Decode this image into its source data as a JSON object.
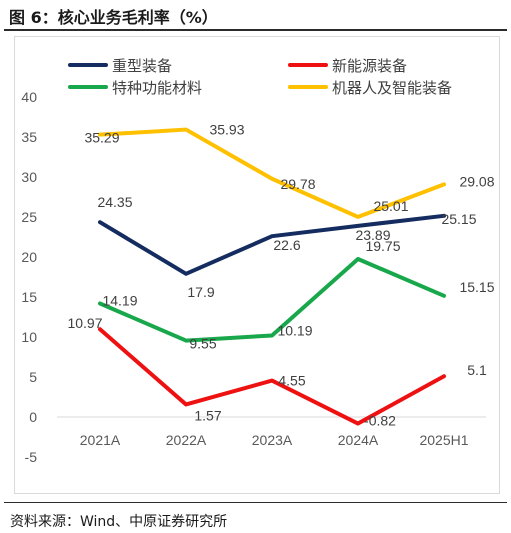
{
  "figure": {
    "title": "图 6：核心业务毛利率（%）",
    "source": "资料来源：Wind、中原证券研究所"
  },
  "chart_data": {
    "type": "line",
    "categories": [
      "2021A",
      "2022A",
      "2023A",
      "2024A",
      "2025H1"
    ],
    "ylim": [
      -5,
      40
    ],
    "yticks": [
      -5,
      0,
      5,
      10,
      15,
      20,
      25,
      30,
      35,
      40
    ],
    "grid": false,
    "legend_position": "top",
    "series": [
      {
        "name": "重型装备",
        "color": "#142c5f",
        "values": [
          24.35,
          17.9,
          22.6,
          23.89,
          25.15
        ],
        "labels": [
          "24.35",
          "17.9",
          "22.6",
          "23.89",
          "25.15"
        ]
      },
      {
        "name": "新能源装备",
        "color": "#ee1111",
        "values": [
          10.97,
          1.57,
          4.55,
          -0.82,
          5.1
        ],
        "labels": [
          "10.97",
          "1.57",
          "4.55",
          "-0.82",
          "5.1"
        ]
      },
      {
        "name": "特种功能材料",
        "color": "#18a84b",
        "values": [
          14.19,
          9.55,
          10.19,
          19.75,
          15.15
        ],
        "labels": [
          "14.19",
          "9.55",
          "10.19",
          "19.75",
          "15.15"
        ]
      },
      {
        "name": "机器人及智能装备",
        "color": "#ffc000",
        "values": [
          35.29,
          35.93,
          29.78,
          25.01,
          29.08
        ],
        "labels": [
          "35.29",
          "35.93",
          "29.78",
          "25.01",
          "29.08"
        ]
      }
    ]
  }
}
